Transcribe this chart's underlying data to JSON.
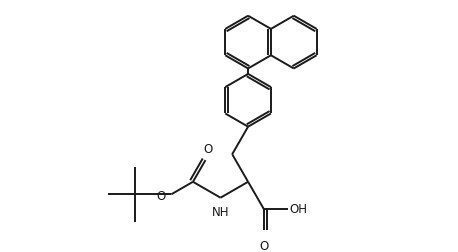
{
  "background_color": "#ffffff",
  "line_color": "#1a1a1a",
  "line_width": 1.4,
  "font_size": 8.5,
  "figsize": [
    4.58,
    2.52
  ],
  "dpi": 100,
  "xlim": [
    0,
    9.16
  ],
  "ylim": [
    0,
    5.04
  ]
}
